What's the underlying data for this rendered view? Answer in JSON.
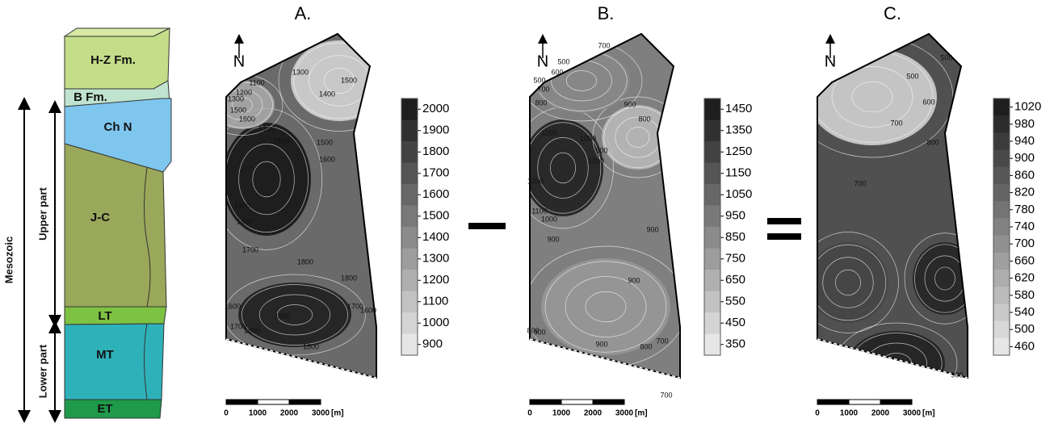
{
  "column": {
    "layers": [
      "H-Z Fm.",
      "B Fm.",
      "Ch N",
      "J-C",
      "LT",
      "MT",
      "ET"
    ],
    "mesozoic": "Mesozoic",
    "upper_part": "Upper part",
    "lower_part": "Lower part"
  },
  "panels": [
    {
      "title": "A.",
      "north": "N",
      "colorbar_ticks": [
        2000,
        1900,
        1800,
        1700,
        1600,
        1500,
        1400,
        1300,
        1200,
        1100,
        1000,
        900
      ],
      "contour_labels": [
        1100,
        1300,
        1500,
        1200,
        1300,
        1400,
        1500,
        1600,
        1700,
        1800,
        1500,
        1600,
        1900,
        1800,
        1700,
        1800,
        1800,
        1900,
        1700,
        1600,
        1600,
        1700,
        1800,
        1800
      ],
      "scale_labels": [
        0,
        1000,
        2000,
        3000
      ],
      "scale_unit": "[m]"
    },
    {
      "title": "B.",
      "north": "N",
      "colorbar_ticks": [
        1450,
        1350,
        1250,
        1150,
        1050,
        950,
        850,
        750,
        650,
        550,
        450,
        350
      ],
      "contour_labels": [
        500,
        700,
        600,
        500,
        700,
        800,
        900,
        800,
        1100,
        1000,
        900,
        1200,
        1200,
        1100,
        1000,
        900,
        900,
        900,
        800,
        900,
        900,
        800,
        700,
        700
      ],
      "scale_labels": [
        0,
        1000,
        2000,
        3000
      ],
      "scale_unit": "[m]"
    },
    {
      "title": "C.",
      "north": "N",
      "colorbar_ticks": [
        1020,
        980,
        940,
        900,
        860,
        820,
        780,
        740,
        700,
        660,
        620,
        580,
        540,
        500,
        460
      ],
      "contour_labels": [
        500,
        500,
        600,
        700,
        800,
        700,
        900
      ],
      "scale_labels": [
        0,
        1000,
        2000,
        3000
      ],
      "scale_unit": "[m]"
    }
  ]
}
